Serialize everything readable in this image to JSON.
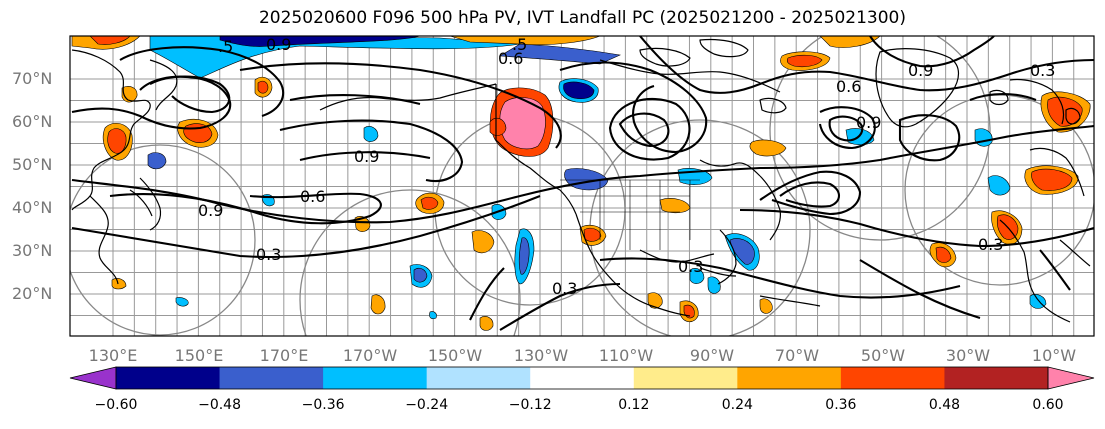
{
  "map": {
    "title": "2025020600 F096 500 hPa PV, IVT Landfall PC (2025021200 - 2025021300)",
    "lat_labels": [
      "70°N",
      "60°N",
      "50°N",
      "40°N",
      "30°N",
      "20°N"
    ],
    "lon_labels": [
      "130°E",
      "150°E",
      "170°E",
      "170°W",
      "150°W",
      "130°W",
      "110°W",
      "90°W",
      "70°W",
      "50°W",
      "30°W",
      "10°W"
    ],
    "contour_labels": [
      "0.3",
      "0.3",
      "0.3",
      "0.3",
      "0.6",
      "0.6",
      "0.9",
      "0.9",
      "0.9",
      "0.9",
      ".5",
      ".5",
      "0.3",
      "0.6",
      "0.9"
    ],
    "colorbar": {
      "tick_labels": [
        "−0.60",
        "−0.48",
        "−0.36",
        "−0.24",
        "−0.12",
        "0.12",
        "0.24",
        "0.36",
        "0.48",
        "0.60"
      ],
      "colors": [
        "#9932CC",
        "#00008B",
        "#3A5FCD",
        "#00BFFF",
        "#B0E2FF",
        "#FFFFFF",
        "#FFEC8B",
        "#FFA500",
        "#FF4500",
        "#B22222",
        "#FF82AB"
      ]
    },
    "colors": {
      "land_outline": "#000000",
      "gridline": "#999999",
      "contour": "#000000",
      "ring": "#888888"
    }
  }
}
